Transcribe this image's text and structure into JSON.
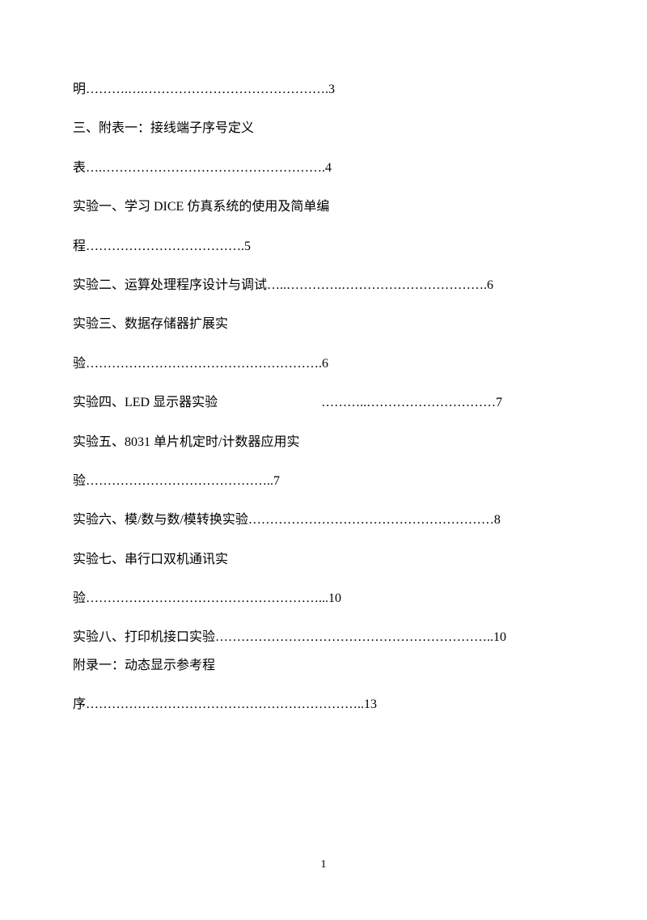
{
  "page": {
    "background_color": "#ffffff",
    "text_color": "#000000",
    "font_family": "SimSun",
    "font_size_body": 16,
    "font_size_footer": 14,
    "page_number": "1"
  },
  "toc": {
    "lines": [
      "明……….….…………………………………….3",
      "三、附表一：接线端子序号定义",
      "表….…………………………………………….4",
      "实验一、学习 DICE 仿真系统的使用及简单编",
      "程……………………………….5",
      "实验二、运算处理程序设计与调试…..………….…………………………….6",
      "实验三、数据存储器扩展实",
      "验……………………………………………….6",
      "实验四、LED 显示器实验        ………..…………………………7",
      "实验五、8031 单片机定时/计数器应用实",
      "验……………………………………..7",
      "实验六、模/数与数/模转换实验…………………………………………………8",
      "实验七、串行口双机通讯实",
      "验………………………………………………...10",
      "实验八、打印机接口实验………………………………………………………..10",
      "附录一：动态显示参考程",
      "序………………………………………………………..13"
    ]
  }
}
